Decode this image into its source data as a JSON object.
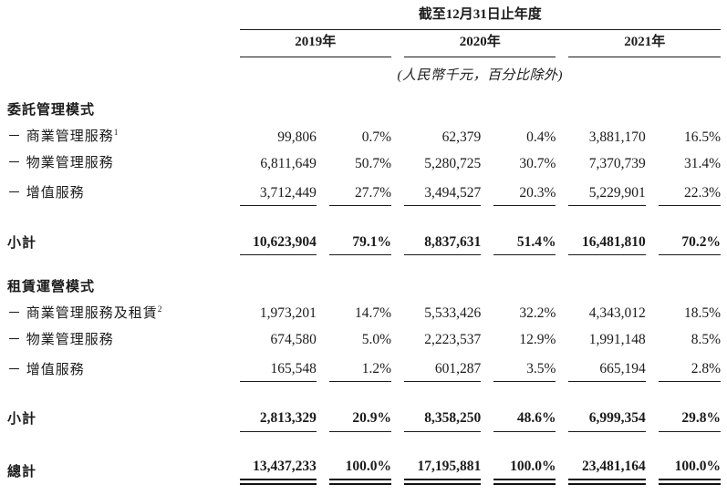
{
  "header": {
    "period_title": "截至12月31日止年度",
    "years": [
      "2019年",
      "2020年",
      "2021年"
    ],
    "unit_note": "(人民幣千元，百分比除外)"
  },
  "sections": [
    {
      "title": "委託管理模式",
      "rows": [
        {
          "label": "－ 商業管理服務",
          "sup": "1",
          "values": [
            "99,806",
            "0.7%",
            "62,379",
            "0.4%",
            "3,881,170",
            "16.5%"
          ]
        },
        {
          "label": "－ 物業管理服務",
          "sup": "",
          "values": [
            "6,811,649",
            "50.7%",
            "5,280,725",
            "30.7%",
            "7,370,739",
            "31.4%"
          ]
        },
        {
          "label": "－ 增值服務",
          "sup": "",
          "values": [
            "3,712,449",
            "27.7%",
            "3,494,527",
            "20.3%",
            "5,229,901",
            "22.3%"
          ]
        }
      ],
      "subtotal": {
        "label": "小計",
        "values": [
          "10,623,904",
          "79.1%",
          "8,837,631",
          "51.4%",
          "16,481,810",
          "70.2%"
        ]
      }
    },
    {
      "title": "租賃運營模式",
      "rows": [
        {
          "label": "－ 商業管理服務及租賃",
          "sup": "2",
          "values": [
            "1,973,201",
            "14.7%",
            "5,533,426",
            "32.2%",
            "4,343,012",
            "18.5%"
          ]
        },
        {
          "label": "－ 物業管理服務",
          "sup": "",
          "values": [
            "674,580",
            "5.0%",
            "2,223,537",
            "12.9%",
            "1,991,148",
            "8.5%"
          ]
        },
        {
          "label": "－ 增值服務",
          "sup": "",
          "values": [
            "165,548",
            "1.2%",
            "601,287",
            "3.5%",
            "665,194",
            "2.8%"
          ]
        }
      ],
      "subtotal": {
        "label": "小計",
        "values": [
          "2,813,329",
          "20.9%",
          "8,358,250",
          "48.6%",
          "6,999,354",
          "29.8%"
        ]
      }
    }
  ],
  "total": {
    "label": "總計",
    "values": [
      "13,437,233",
      "100.0%",
      "17,195,881",
      "100.0%",
      "23,481,164",
      "100.0%"
    ]
  },
  "colors": {
    "text": "#1b1b1b",
    "rule": "#1b1b1b",
    "background": "#ffffff"
  }
}
